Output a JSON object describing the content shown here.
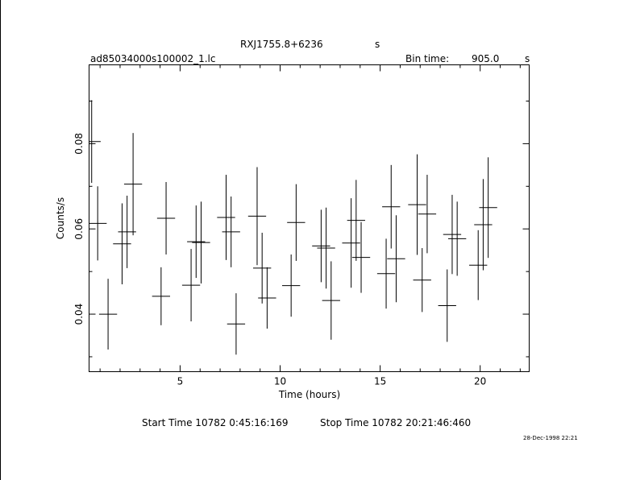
{
  "header": {
    "source_name": "RXJ1755.8+6236",
    "source_unit": "s",
    "file_name": "ad85034000s100002_1.lc",
    "bin_time_label": "Bin time:",
    "bin_time_value": "905.0",
    "bin_time_unit": "s"
  },
  "footer": {
    "start_label": "Start Time 10782  0:45:16:169",
    "stop_label": "Stop Time 10782 20:21:46:460",
    "timestamp": "28-Dec-1998 22:21"
  },
  "chart_data": {
    "type": "scatter",
    "xlabel": "Time (hours)",
    "ylabel": "Counts/s",
    "xlim": [
      0.45,
      22.45
    ],
    "ylim": [
      0.0265,
      0.0985
    ],
    "xticks": [
      5,
      10,
      15,
      20
    ],
    "yticks": [
      0.04,
      0.06,
      0.08
    ],
    "xtick_labels": [
      "5",
      "10",
      "15",
      "20"
    ],
    "ytick_labels": [
      "0.04",
      "0.06",
      "0.08"
    ],
    "grid": false,
    "points": [
      {
        "x": 0.58,
        "y": 0.0805,
        "err": 0.0097
      },
      {
        "x": 0.88,
        "y": 0.0613,
        "err": 0.0087
      },
      {
        "x": 1.4,
        "y": 0.04,
        "err": 0.0083
      },
      {
        "x": 2.1,
        "y": 0.0565,
        "err": 0.0095
      },
      {
        "x": 2.35,
        "y": 0.0593,
        "err": 0.0085
      },
      {
        "x": 2.65,
        "y": 0.0705,
        "err": 0.012
      },
      {
        "x": 4.05,
        "y": 0.0442,
        "err": 0.0068
      },
      {
        "x": 4.3,
        "y": 0.0625,
        "err": 0.0085
      },
      {
        "x": 5.55,
        "y": 0.0468,
        "err": 0.0085
      },
      {
        "x": 5.8,
        "y": 0.057,
        "err": 0.0085
      },
      {
        "x": 6.05,
        "y": 0.0568,
        "err": 0.0096
      },
      {
        "x": 7.3,
        "y": 0.0627,
        "err": 0.01
      },
      {
        "x": 7.55,
        "y": 0.0593,
        "err": 0.0083
      },
      {
        "x": 7.8,
        "y": 0.0377,
        "err": 0.0072
      },
      {
        "x": 8.85,
        "y": 0.063,
        "err": 0.0115
      },
      {
        "x": 9.1,
        "y": 0.0508,
        "err": 0.0083
      },
      {
        "x": 9.35,
        "y": 0.0438,
        "err": 0.0072
      },
      {
        "x": 10.55,
        "y": 0.0467,
        "err": 0.0073
      },
      {
        "x": 10.8,
        "y": 0.0615,
        "err": 0.009
      },
      {
        "x": 12.05,
        "y": 0.056,
        "err": 0.0085
      },
      {
        "x": 12.3,
        "y": 0.0555,
        "err": 0.0095
      },
      {
        "x": 12.55,
        "y": 0.0432,
        "err": 0.0092
      },
      {
        "x": 13.55,
        "y": 0.0567,
        "err": 0.0105
      },
      {
        "x": 13.8,
        "y": 0.062,
        "err": 0.0095
      },
      {
        "x": 14.05,
        "y": 0.0533,
        "err": 0.0083
      },
      {
        "x": 15.3,
        "y": 0.0495,
        "err": 0.0082
      },
      {
        "x": 15.55,
        "y": 0.0652,
        "err": 0.0098
      },
      {
        "x": 15.8,
        "y": 0.053,
        "err": 0.0102
      },
      {
        "x": 16.85,
        "y": 0.0657,
        "err": 0.0118
      },
      {
        "x": 17.1,
        "y": 0.048,
        "err": 0.0075
      },
      {
        "x": 17.35,
        "y": 0.0635,
        "err": 0.0092
      },
      {
        "x": 18.35,
        "y": 0.042,
        "err": 0.0085
      },
      {
        "x": 18.6,
        "y": 0.0587,
        "err": 0.0093
      },
      {
        "x": 18.85,
        "y": 0.0577,
        "err": 0.0087
      },
      {
        "x": 19.9,
        "y": 0.0515,
        "err": 0.0082
      },
      {
        "x": 20.15,
        "y": 0.061,
        "err": 0.0107
      },
      {
        "x": 20.4,
        "y": 0.065,
        "err": 0.0118
      }
    ]
  }
}
